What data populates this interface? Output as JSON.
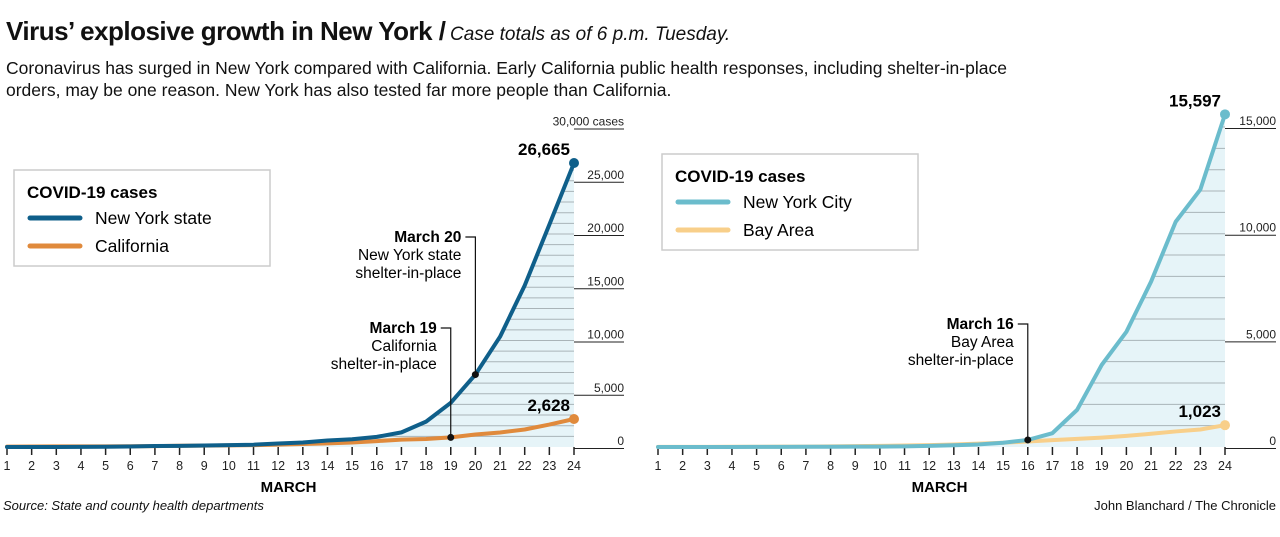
{
  "header": {
    "title": "Virus’ explosive growth in New York /",
    "subtitle": "Case totals as of 6 p.m. Tuesday.",
    "dek": "Coronavirus has surged in New York compared with California. Early California public health responses, including shelter-in-place orders, may be one reason. New York has also tested far more people than California."
  },
  "footer": {
    "source": "Source: State and county health departments",
    "credit": "John Blanchard / The Chronicle"
  },
  "chart_data": [
    {
      "type": "line",
      "x": [
        1,
        2,
        3,
        4,
        5,
        6,
        7,
        8,
        9,
        10,
        11,
        12,
        13,
        14,
        15,
        16,
        17,
        18,
        19,
        20,
        21,
        22,
        23,
        24
      ],
      "xlabel": "MARCH",
      "ylim": [
        0,
        30000
      ],
      "yticks": [
        "0",
        "5,000",
        "10,000",
        "15,000",
        "20,000",
        "25,000",
        "30,000 cases"
      ],
      "legend_title": "COVID-19 cases",
      "legend_position": "top-left",
      "series": [
        {
          "name": "New York state",
          "color": "#0f5f8a",
          "values": [
            1,
            1,
            2,
            11,
            22,
            44,
            89,
            106,
            142,
            173,
            217,
            326,
            421,
            610,
            732,
            950,
            1374,
            2382,
            4152,
            6800,
            10356,
            15168,
            20875,
            26665
          ],
          "end_label": "26,665"
        },
        {
          "name": "California",
          "color": "#e08a3c",
          "values": [
            35,
            43,
            53,
            53,
            60,
            69,
            88,
            114,
            133,
            157,
            177,
            221,
            282,
            340,
            426,
            557,
            698,
            751,
            900,
            1177,
            1364,
            1642,
            2108,
            2628
          ],
          "end_label": "2,628"
        }
      ],
      "annotations": [
        {
          "day": 20,
          "series": 0,
          "lines": [
            "March 20",
            "New York state",
            "shelter-in-place"
          ]
        },
        {
          "day": 19,
          "series": 1,
          "lines": [
            "March 19",
            "California",
            "shelter-in-place"
          ]
        }
      ]
    },
    {
      "type": "line",
      "x": [
        1,
        2,
        3,
        4,
        5,
        6,
        7,
        8,
        9,
        10,
        11,
        12,
        13,
        14,
        15,
        16,
        17,
        18,
        19,
        20,
        21,
        22,
        23,
        24
      ],
      "xlabel": "MARCH",
      "ylim": [
        0,
        15000
      ],
      "yticks": [
        "0",
        "5,000",
        "10,000",
        "15,000"
      ],
      "legend_title": "COVID-19 cases",
      "legend_position": "top-left",
      "series": [
        {
          "name": "New York City",
          "color": "#6bbccc",
          "values": [
            0,
            0,
            0,
            1,
            3,
            5,
            10,
            12,
            15,
            20,
            30,
            50,
            80,
            120,
            200,
            330,
            650,
            1740,
            3850,
            5400,
            7750,
            10560,
            12070,
            15597
          ],
          "end_label": "15,597"
        },
        {
          "name": "Bay Area",
          "color": "#f8cf8a",
          "values": [
            5,
            6,
            8,
            10,
            12,
            15,
            20,
            30,
            40,
            50,
            70,
            90,
            120,
            160,
            200,
            260,
            320,
            380,
            440,
            520,
            620,
            730,
            820,
            1023
          ],
          "end_label": "1,023"
        }
      ],
      "annotations": [
        {
          "day": 16,
          "series": 0,
          "lines": [
            "March 16",
            "Bay Area",
            "shelter-in-place"
          ]
        }
      ]
    }
  ]
}
